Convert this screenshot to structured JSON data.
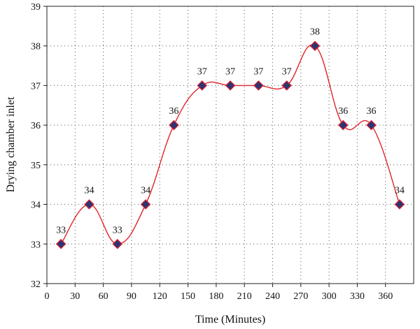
{
  "chart_data": {
    "type": "line",
    "xlabel": "Time (Minutes)",
    "ylabel": "Drying chamber inlet",
    "xlim": [
      0,
      390
    ],
    "ylim": [
      32,
      39
    ],
    "x_ticks": [
      0,
      30,
      60,
      90,
      120,
      150,
      180,
      210,
      240,
      270,
      300,
      330,
      360
    ],
    "y_ticks": [
      32,
      33,
      34,
      35,
      36,
      37,
      38,
      39
    ],
    "grid": true,
    "series": [
      {
        "x": [
          15,
          45,
          75,
          105,
          135,
          165,
          195,
          225,
          255,
          285,
          315,
          345,
          375
        ],
        "values": [
          33,
          34,
          33,
          34,
          36,
          37,
          37,
          37,
          37,
          38,
          36,
          36,
          34
        ],
        "data_labels": [
          "33",
          "34",
          "33",
          "34",
          "36",
          "37",
          "37",
          "37",
          "37",
          "38",
          "36",
          "36",
          "34"
        ],
        "line_color": "#e0242a",
        "marker_fill": "#2f3475",
        "marker_stroke": "#e0242a",
        "marker": "diamond"
      }
    ]
  }
}
